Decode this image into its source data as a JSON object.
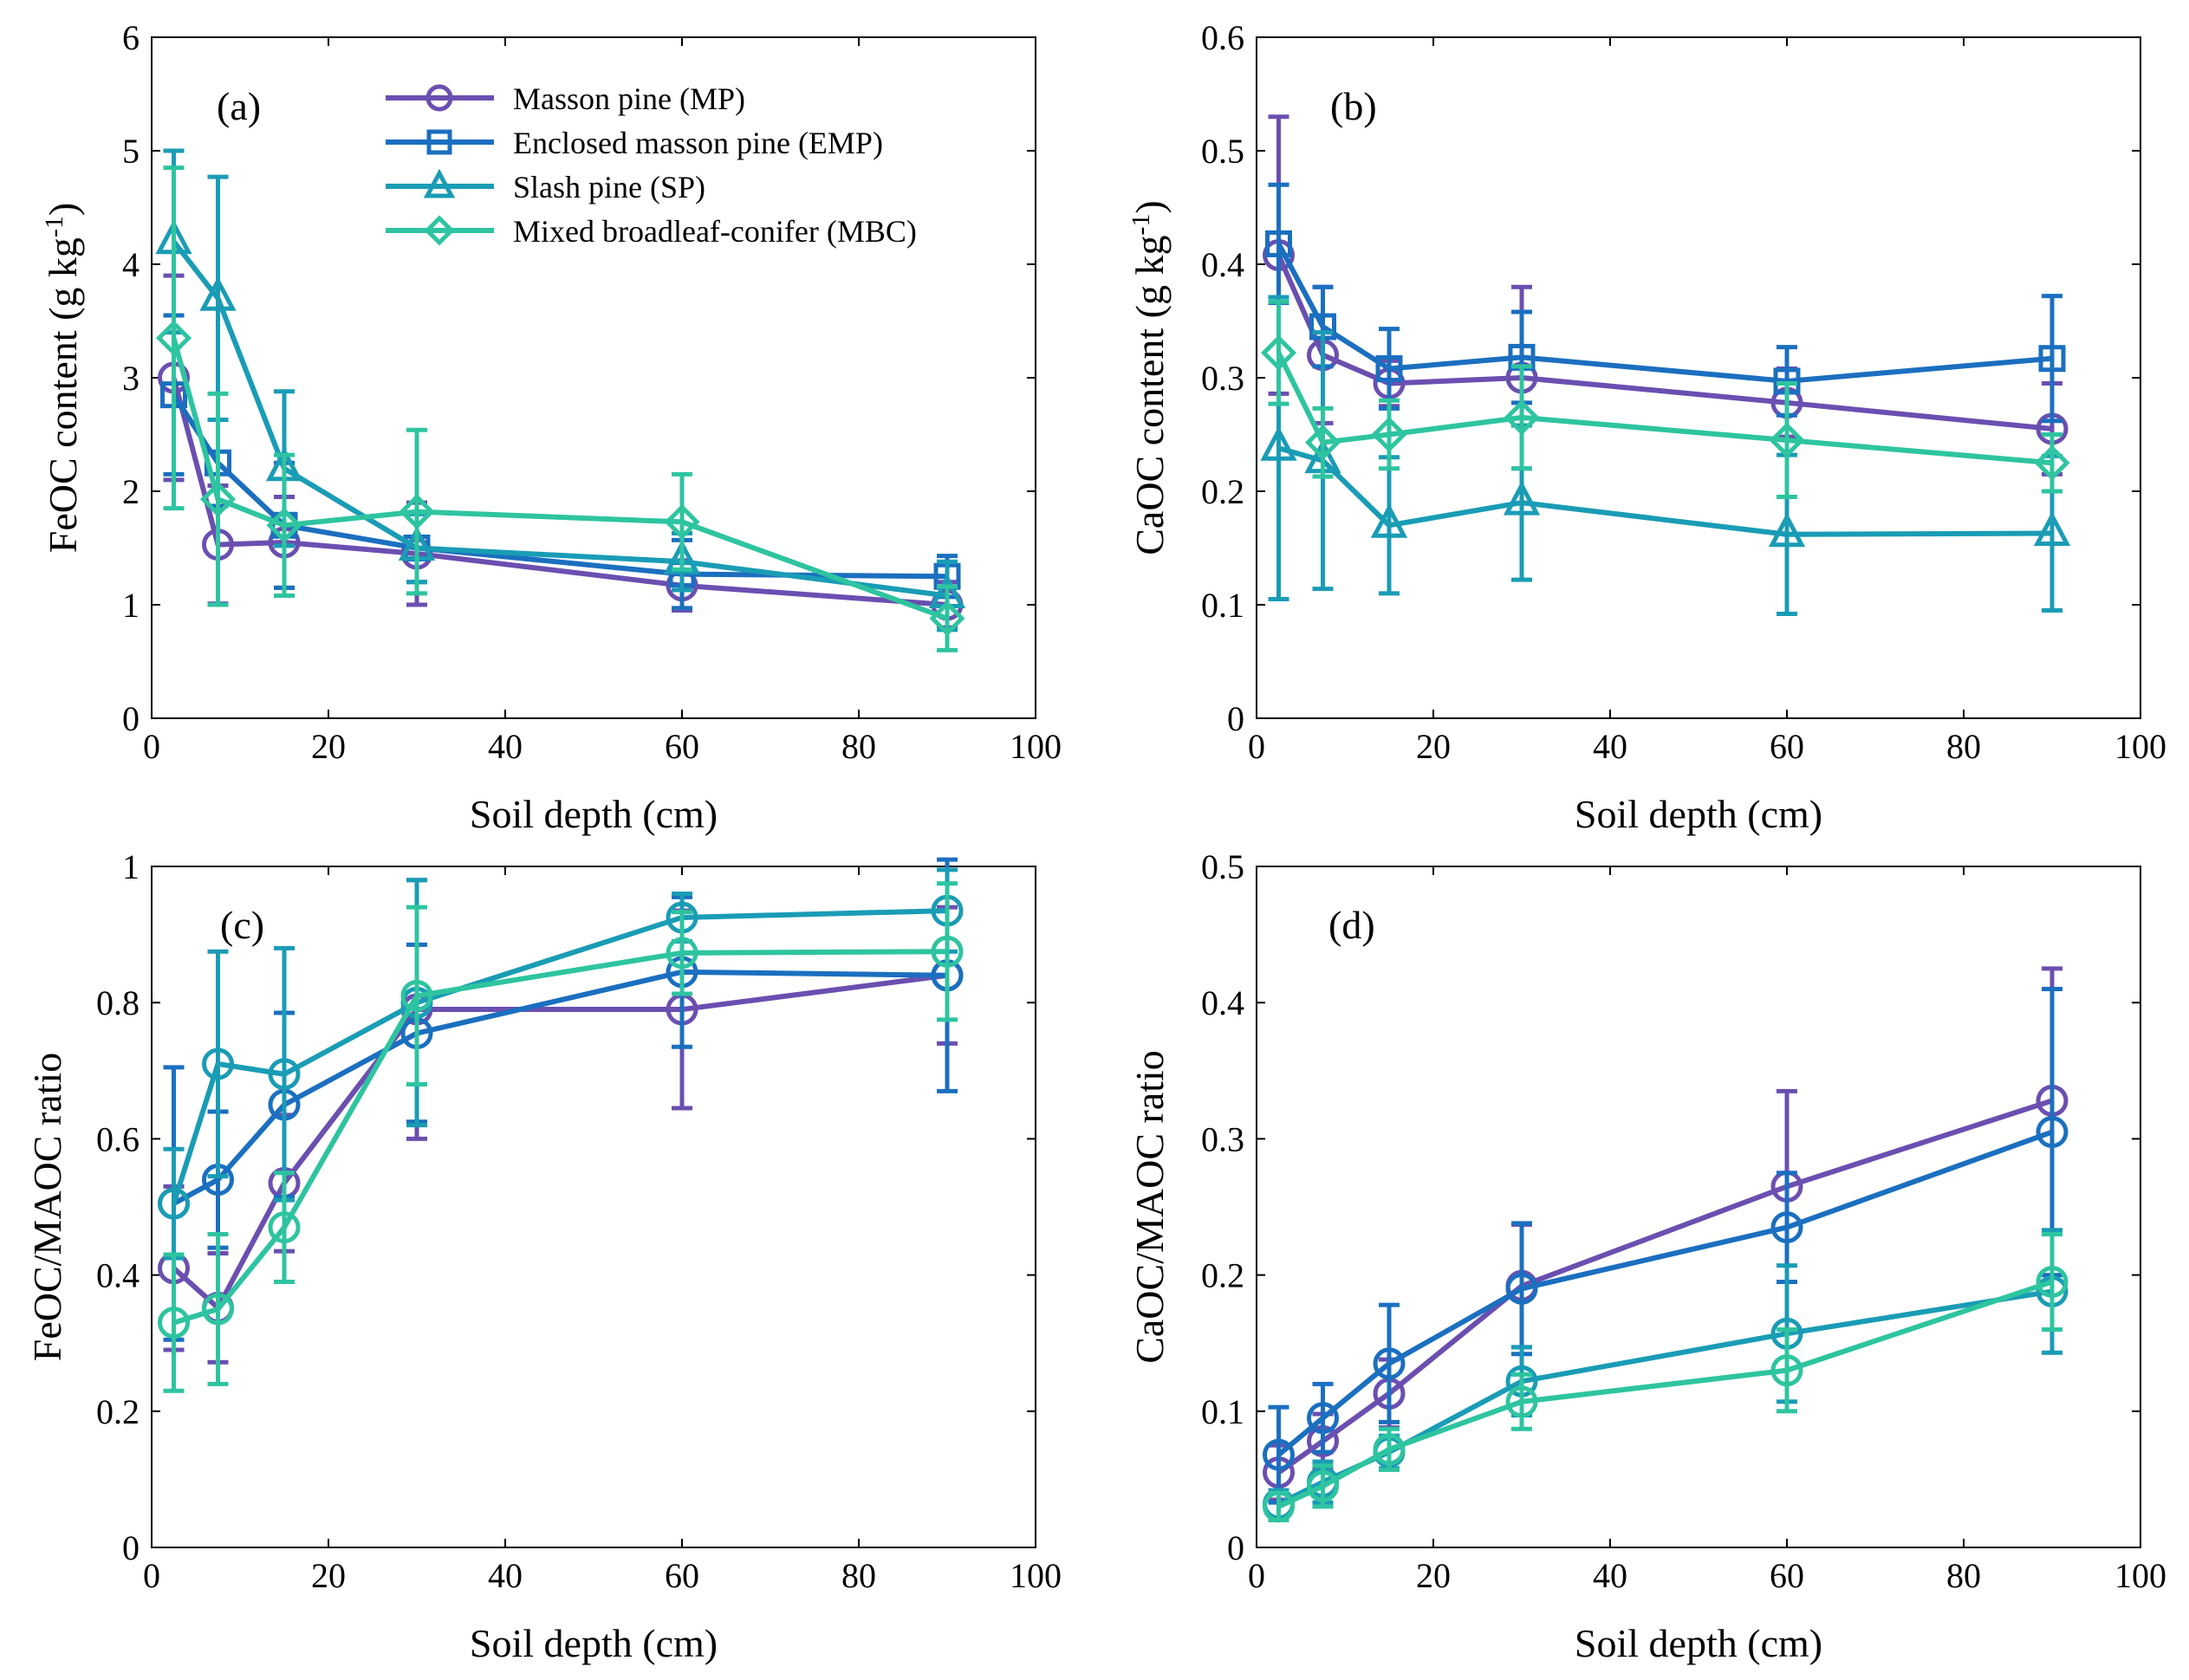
{
  "legend": {
    "entries": [
      {
        "name": "Masson pine (MP)",
        "marker": "circle",
        "color": "#6A4FB0"
      },
      {
        "name": "Enclosed masson pine (EMP)",
        "marker": "square",
        "color": "#1B6FBF"
      },
      {
        "name": "Slash pine (SP)",
        "marker": "triangle",
        "color": "#1A9CB5"
      },
      {
        "name": "Mixed broadleaf-conifer (MBC)",
        "marker": "diamond",
        "color": "#2EC4A0"
      }
    ]
  },
  "chart_data": [
    {
      "type": "line",
      "panel_label": "(a)",
      "xlabel": "Soil depth (cm)",
      "ylabel": "FeOC content (g kg",
      "ylabel_superscript": "-1",
      "ylabel_suffix": ")",
      "xlim": [
        0,
        100
      ],
      "ylim": [
        0,
        6
      ],
      "xticks": [
        "0",
        "20",
        "40",
        "60",
        "80",
        "100"
      ],
      "yticks": [
        "0",
        "1",
        "2",
        "3",
        "4",
        "5",
        "6"
      ],
      "legend_position": "top",
      "x": [
        2.5,
        7.5,
        15,
        30,
        60,
        90
      ],
      "series": [
        {
          "name": "Masson pine (MP)",
          "marker": "circle",
          "values": [
            3.0,
            1.53,
            1.55,
            1.45,
            1.17,
            1.0
          ],
          "err": [
            0.9,
            0.52,
            0.4,
            0.45,
            0.22,
            0.2
          ]
        },
        {
          "name": "Enclosed masson pine (EMP)",
          "marker": "square",
          "values": [
            2.85,
            2.25,
            1.7,
            1.5,
            1.27,
            1.25
          ],
          "err": [
            0.7,
            0.38,
            0.55,
            0.3,
            0.3,
            0.18
          ]
        },
        {
          "name": "Slash pine (SP)",
          "marker": "triangle",
          "values": [
            4.2,
            3.7,
            2.2,
            1.5,
            1.38,
            1.08
          ],
          "err": [
            0.8,
            1.07,
            0.68,
            0.3,
            0.25,
            0.3
          ]
        },
        {
          "name": "Mixed broadleaf-conifer (MBC)",
          "marker": "diamond",
          "values": [
            3.35,
            1.93,
            1.7,
            1.82,
            1.73,
            0.88
          ],
          "err": [
            1.5,
            0.93,
            0.62,
            0.72,
            0.42,
            0.28
          ]
        }
      ]
    },
    {
      "type": "line",
      "panel_label": "(b)",
      "xlabel": "Soil depth (cm)",
      "ylabel": "CaOC content (g kg",
      "ylabel_superscript": "-1",
      "ylabel_suffix": ")",
      "xlim": [
        0,
        100
      ],
      "ylim": [
        0,
        0.6
      ],
      "xticks": [
        "0",
        "20",
        "40",
        "60",
        "80",
        "100"
      ],
      "yticks": [
        "0",
        "0.1",
        "0.2",
        "0.3",
        "0.4",
        "0.5",
        "0.6"
      ],
      "x": [
        2.5,
        7.5,
        15,
        30,
        60,
        90
      ],
      "series": [
        {
          "name": "Masson pine (MP)",
          "marker": "circle",
          "values": [
            0.408,
            0.32,
            0.295,
            0.3,
            0.278,
            0.255
          ],
          "err": [
            0.122,
            0.06,
            0.02,
            0.08,
            0.03,
            0.04
          ]
        },
        {
          "name": "Enclosed masson pine (EMP)",
          "marker": "square",
          "values": [
            0.418,
            0.345,
            0.308,
            0.318,
            0.297,
            0.317
          ],
          "err": [
            0.052,
            0.035,
            0.035,
            0.04,
            0.03,
            0.055
          ]
        },
        {
          "name": "Slash pine (SP)",
          "marker": "triangle",
          "values": [
            0.238,
            0.227,
            0.17,
            0.19,
            0.162,
            0.163
          ],
          "err": [
            0.133,
            0.113,
            0.06,
            0.068,
            0.07,
            0.068
          ]
        },
        {
          "name": "Mixed broadleaf-conifer (MBC)",
          "marker": "diamond",
          "values": [
            0.322,
            0.243,
            0.25,
            0.265,
            0.245,
            0.225
          ],
          "err": [
            0.045,
            0.03,
            0.03,
            0.045,
            0.05,
            0.025
          ]
        }
      ]
    },
    {
      "type": "line",
      "panel_label": "(c)",
      "xlabel": "Soil depth (cm)",
      "ylabel": "FeOC/MAOC ratio",
      "xlim": [
        0,
        100
      ],
      "ylim": [
        0,
        1
      ],
      "xticks": [
        "0",
        "20",
        "40",
        "60",
        "80",
        "100"
      ],
      "yticks": [
        "0",
        "0.2",
        "0.4",
        "0.6",
        "0.8",
        "1"
      ],
      "x": [
        2.5,
        7.5,
        15,
        30,
        60,
        90
      ],
      "series": [
        {
          "name": "Masson pine (MP)",
          "marker": "circle",
          "values": [
            0.41,
            0.352,
            0.535,
            0.79,
            0.79,
            0.84
          ],
          "err": [
            0.12,
            0.08,
            0.1,
            0.19,
            0.145,
            0.1
          ]
        },
        {
          "name": "Enclosed masson pine (EMP)",
          "marker": "circle",
          "values": [
            0.505,
            0.54,
            0.65,
            0.755,
            0.845,
            0.84
          ],
          "err": [
            0.2,
            0.1,
            0.135,
            0.13,
            0.11,
            0.17
          ]
        },
        {
          "name": "Slash pine (SP)",
          "marker": "circle",
          "values": [
            0.505,
            0.71,
            0.695,
            0.8,
            0.925,
            0.935
          ],
          "err": [
            0.08,
            0.165,
            0.185,
            0.18,
            0.035,
            0.06
          ]
        },
        {
          "name": "Mixed broadleaf-conifer (MBC)",
          "marker": "circle",
          "values": [
            0.33,
            0.35,
            0.47,
            0.81,
            0.873,
            0.875
          ],
          "err": [
            0.1,
            0.11,
            0.08,
            0.13,
            0.06,
            0.1
          ]
        }
      ]
    },
    {
      "type": "line",
      "panel_label": "(d)",
      "xlabel": "Soil depth (cm)",
      "ylabel": "CaOC/MAOC ratio",
      "xlim": [
        0,
        100
      ],
      "ylim": [
        0,
        0.5
      ],
      "xticks": [
        "0",
        "20",
        "40",
        "60",
        "80",
        "100"
      ],
      "yticks": [
        "0",
        "0.1",
        "0.2",
        "0.3",
        "0.4",
        "0.5"
      ],
      "x": [
        2.5,
        7.5,
        15,
        30,
        60,
        90
      ],
      "series": [
        {
          "name": "Masson pine (MP)",
          "marker": "circle",
          "values": [
            0.055,
            0.078,
            0.113,
            0.192,
            0.265,
            0.328
          ],
          "err": [
            0.02,
            0.02,
            0.025,
            0.045,
            0.07,
            0.097
          ]
        },
        {
          "name": "Enclosed masson pine (EMP)",
          "marker": "circle",
          "values": [
            0.068,
            0.095,
            0.135,
            0.19,
            0.235,
            0.305
          ],
          "err": [
            0.035,
            0.025,
            0.043,
            0.048,
            0.04,
            0.105
          ]
        },
        {
          "name": "Slash pine (SP)",
          "marker": "circle",
          "values": [
            0.032,
            0.048,
            0.07,
            0.122,
            0.157,
            0.188
          ],
          "err": [
            0.01,
            0.015,
            0.012,
            0.025,
            0.05,
            0.045
          ]
        },
        {
          "name": "Mixed broadleaf-conifer (MBC)",
          "marker": "circle",
          "values": [
            0.03,
            0.045,
            0.072,
            0.107,
            0.13,
            0.195
          ],
          "err": [
            0.01,
            0.015,
            0.015,
            0.02,
            0.03,
            0.035
          ]
        }
      ]
    }
  ]
}
